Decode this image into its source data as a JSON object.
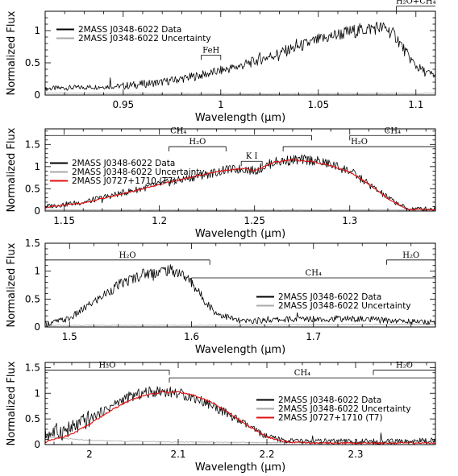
{
  "chart_data": [
    {
      "type": "line",
      "xlabel": "Wavelength (μm)",
      "ylabel": "Normalized Flux",
      "xlim": [
        0.91,
        1.11
      ],
      "ylim": [
        0,
        1.3
      ],
      "xticks": [
        "0.95",
        "1",
        "1.05",
        "1.1"
      ],
      "yticks": [
        "0",
        "0.5",
        "1"
      ],
      "legend_position": "top-left",
      "series": [
        {
          "name": "2MASS J0348-6022 Data",
          "color": "#000000",
          "x": [
            0.91,
            0.93,
            0.95,
            0.97,
            0.985,
            0.995,
            1.0,
            1.01,
            1.02,
            1.03,
            1.04,
            1.05,
            1.06,
            1.07,
            1.08,
            1.085,
            1.09,
            1.095,
            1.1,
            1.105,
            1.11
          ],
          "y": [
            0.1,
            0.12,
            0.14,
            0.2,
            0.28,
            0.34,
            0.38,
            0.45,
            0.55,
            0.65,
            0.75,
            0.85,
            0.94,
            1.0,
            1.05,
            1.03,
            0.9,
            0.65,
            0.45,
            0.35,
            0.3
          ]
        },
        {
          "name": "2MASS J0348-6022 Uncertainty",
          "color": "#aaaaaa",
          "x": [
            0.91,
            0.95,
            1.0,
            1.05,
            1.1,
            1.11
          ],
          "y": [
            0.03,
            0.025,
            0.02,
            0.02,
            0.025,
            0.03
          ]
        }
      ],
      "features": [
        {
          "label": "FeH",
          "x1": 0.99,
          "x2": 1.0,
          "y": 0.62
        },
        {
          "label": "H₂O+CH₄",
          "x1": 1.09,
          "x2": 1.11,
          "y": 1.38
        }
      ]
    },
    {
      "type": "line",
      "xlabel": "Wavelength (μm)",
      "ylabel": "Normalized Flux",
      "xlim": [
        1.14,
        1.345
      ],
      "ylim": [
        0,
        1.85
      ],
      "xticks": [
        "1.15",
        "1.2",
        "1.25",
        "1.3"
      ],
      "yticks": [
        "0",
        "0.5",
        "1",
        "1.5"
      ],
      "legend_position": "middle-left",
      "series": [
        {
          "name": "2MASS J0348-6022 Data",
          "color": "#000000",
          "x": [
            1.14,
            1.16,
            1.18,
            1.2,
            1.22,
            1.235,
            1.245,
            1.25,
            1.255,
            1.26,
            1.27,
            1.28,
            1.29,
            1.3,
            1.31,
            1.32,
            1.33,
            1.345
          ],
          "y": [
            0.1,
            0.2,
            0.4,
            0.6,
            0.78,
            0.92,
            0.95,
            0.9,
            1.0,
            1.1,
            1.15,
            1.15,
            1.05,
            0.9,
            0.6,
            0.3,
            0.05,
            0.05
          ]
        },
        {
          "name": "2MASS J0348-6022 Uncertainty",
          "color": "#aaaaaa",
          "x": [
            1.14,
            1.2,
            1.25,
            1.3,
            1.345
          ],
          "y": [
            0.03,
            0.025,
            0.025,
            0.025,
            0.03
          ]
        },
        {
          "name": "2MASS J0727+1710 (T7)",
          "color": "#e01010",
          "x": [
            1.14,
            1.16,
            1.18,
            1.2,
            1.22,
            1.235,
            1.245,
            1.25,
            1.255,
            1.26,
            1.27,
            1.28,
            1.29,
            1.3,
            1.31,
            1.32,
            1.33,
            1.345
          ],
          "y": [
            0.08,
            0.18,
            0.38,
            0.6,
            0.8,
            0.92,
            0.96,
            0.9,
            1.0,
            1.1,
            1.15,
            1.12,
            1.02,
            0.88,
            0.6,
            0.28,
            0.04,
            0.03
          ]
        }
      ],
      "features": [
        {
          "label": "CH₄",
          "x1": 1.14,
          "x2": 1.28,
          "y": 1.7
        },
        {
          "label": "CH₄",
          "x1": 1.3,
          "x2": 1.345,
          "y": 1.7
        },
        {
          "label": "H₂O",
          "x1": 1.205,
          "x2": 1.235,
          "y": 1.45
        },
        {
          "label": "H₂O",
          "x1": 1.265,
          "x2": 1.345,
          "y": 1.45
        },
        {
          "label": "K I",
          "x1": 1.243,
          "x2": 1.254,
          "y": 1.12
        }
      ]
    },
    {
      "type": "line",
      "xlabel": "Wavelength (μm)",
      "ylabel": "Normalized Flux",
      "xlim": [
        1.48,
        1.8
      ],
      "ylim": [
        0,
        1.5
      ],
      "xticks": [
        "1.5",
        "1.6",
        "1.7"
      ],
      "yticks": [
        "0",
        "0.5",
        "1",
        "1.5"
      ],
      "legend_position": "middle-right",
      "series": [
        {
          "name": "2MASS J0348-6022 Data",
          "color": "#000000",
          "x": [
            1.48,
            1.5,
            1.52,
            1.54,
            1.56,
            1.58,
            1.59,
            1.6,
            1.61,
            1.62,
            1.64,
            1.66,
            1.68,
            1.7,
            1.72,
            1.74,
            1.76,
            1.78,
            1.8
          ],
          "y": [
            0.05,
            0.15,
            0.45,
            0.75,
            0.95,
            1.02,
            0.98,
            0.8,
            0.5,
            0.25,
            0.1,
            0.12,
            0.14,
            0.15,
            0.15,
            0.14,
            0.12,
            0.1,
            0.08
          ]
        },
        {
          "name": "2MASS J0348-6022 Uncertainty",
          "color": "#aaaaaa",
          "x": [
            1.48,
            1.6,
            1.7,
            1.8
          ],
          "y": [
            0.03,
            0.03,
            0.04,
            0.05
          ]
        }
      ],
      "features": [
        {
          "label": "H₂O",
          "x1": 1.48,
          "x2": 1.615,
          "y": 1.2
        },
        {
          "label": "CH₄",
          "x1": 1.6,
          "x2": 1.8,
          "y": 0.88
        },
        {
          "label": "H₂O",
          "x1": 1.76,
          "x2": 1.8,
          "y": 1.2
        }
      ]
    },
    {
      "type": "line",
      "xlabel": "Wavelength (μm)",
      "ylabel": "Normalized Flux",
      "xlim": [
        1.95,
        2.39
      ],
      "ylim": [
        0,
        1.6
      ],
      "xticks": [
        "2",
        "2.1",
        "2.2",
        "2.3"
      ],
      "yticks": [
        "0",
        "0.5",
        "1",
        "1.5"
      ],
      "legend_position": "middle-right",
      "series": [
        {
          "name": "2MASS J0348-6022 Data",
          "color": "#000000",
          "x": [
            1.95,
            1.98,
            2.0,
            2.02,
            2.04,
            2.06,
            2.08,
            2.1,
            2.12,
            2.14,
            2.16,
            2.18,
            2.2,
            2.22,
            2.25,
            2.3,
            2.35,
            2.39
          ],
          "y": [
            0.2,
            0.3,
            0.5,
            0.7,
            0.9,
            1.0,
            1.05,
            1.0,
            0.9,
            0.75,
            0.55,
            0.35,
            0.15,
            0.08,
            0.06,
            0.06,
            0.06,
            0.08
          ]
        },
        {
          "name": "2MASS J0348-6022 Uncertainty",
          "color": "#aaaaaa",
          "x": [
            1.95,
            2.0,
            2.1,
            2.2,
            2.3,
            2.39
          ],
          "y": [
            0.15,
            0.08,
            0.05,
            0.04,
            0.04,
            0.06
          ]
        },
        {
          "name": "2MASS J0727+1710 (T7)",
          "color": "#e01010",
          "x": [
            1.95,
            1.98,
            2.0,
            2.02,
            2.04,
            2.06,
            2.08,
            2.1,
            2.12,
            2.14,
            2.16,
            2.18,
            2.2,
            2.22,
            2.25,
            2.3,
            2.35,
            2.39
          ],
          "y": [
            0.05,
            0.2,
            0.4,
            0.62,
            0.82,
            0.95,
            1.02,
            1.02,
            0.95,
            0.8,
            0.58,
            0.35,
            0.15,
            0.05,
            0.03,
            0.03,
            0.03,
            0.03
          ]
        }
      ],
      "features": [
        {
          "label": "H₂O",
          "x1": 1.95,
          "x2": 2.09,
          "y": 1.45
        },
        {
          "label": "CH₄",
          "x1": 2.09,
          "x2": 2.39,
          "y": 1.3
        },
        {
          "label": "H₂O",
          "x1": 2.32,
          "x2": 2.39,
          "y": 1.45
        }
      ]
    }
  ]
}
